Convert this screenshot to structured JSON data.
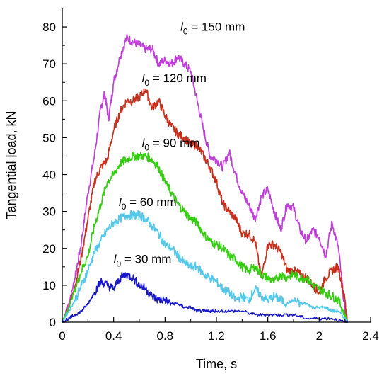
{
  "chart_data": {
    "type": "line",
    "xlabel": "Time, s",
    "ylabel": "Tangential load, kN",
    "xlim": [
      0,
      2.4
    ],
    "ylim": [
      0,
      85
    ],
    "x_ticks": [
      "0",
      "0.4",
      "0.8",
      "1.2",
      "1.6",
      "2",
      "2.4"
    ],
    "y_ticks": [
      "0",
      "10",
      "20",
      "30",
      "40",
      "50",
      "60",
      "70",
      "80"
    ],
    "grid": false,
    "series": [
      {
        "name": "l0 = 150 mm",
        "label_main": "l",
        "label_sub": "0",
        "label_rest": " = 150 mm",
        "color": "#c03ed8",
        "x": [
          0,
          0.05,
          0.1,
          0.15,
          0.2,
          0.25,
          0.3,
          0.33,
          0.36,
          0.4,
          0.45,
          0.5,
          0.55,
          0.6,
          0.65,
          0.7,
          0.75,
          0.8,
          0.85,
          0.9,
          0.95,
          1.0,
          1.05,
          1.1,
          1.15,
          1.2,
          1.25,
          1.3,
          1.35,
          1.4,
          1.45,
          1.5,
          1.55,
          1.6,
          1.65,
          1.7,
          1.75,
          1.8,
          1.85,
          1.9,
          1.95,
          2.0,
          2.05,
          2.1,
          2.15,
          2.2,
          2.22
        ],
        "values": [
          0,
          5,
          12,
          22,
          35,
          45,
          58,
          62,
          55,
          65,
          72,
          77,
          76,
          75,
          74,
          74,
          70,
          71,
          70,
          72,
          70,
          68,
          60,
          52,
          45,
          44,
          42,
          46,
          40,
          35,
          32,
          28,
          34,
          36,
          30,
          25,
          32,
          31,
          25,
          22,
          25,
          23,
          18,
          27,
          20,
          3,
          0
        ]
      },
      {
        "name": "l0 = 120 mm",
        "label_main": "l",
        "label_sub": "0",
        "label_rest": " = 120 mm",
        "color": "#c8301e",
        "x": [
          0,
          0.05,
          0.1,
          0.15,
          0.2,
          0.25,
          0.3,
          0.35,
          0.4,
          0.45,
          0.5,
          0.55,
          0.6,
          0.65,
          0.7,
          0.75,
          0.8,
          0.85,
          0.9,
          0.95,
          1.0,
          1.05,
          1.1,
          1.15,
          1.2,
          1.25,
          1.3,
          1.35,
          1.4,
          1.45,
          1.5,
          1.55,
          1.6,
          1.65,
          1.7,
          1.75,
          1.8,
          1.85,
          1.9,
          1.95,
          2.0,
          2.05,
          2.1,
          2.15,
          2.2,
          2.22
        ],
        "values": [
          0,
          4,
          10,
          18,
          28,
          38,
          42,
          44,
          52,
          57,
          60,
          60,
          61,
          63,
          58,
          60,
          56,
          53,
          51,
          50,
          48,
          48,
          45,
          42,
          38,
          32,
          30,
          28,
          24,
          24,
          22,
          12,
          21,
          21,
          19,
          14,
          14,
          13,
          12,
          10,
          8,
          12,
          14,
          15,
          6,
          0
        ]
      },
      {
        "name": "l0 = 90 mm",
        "label_main": "l",
        "label_sub": "0",
        "label_rest": " = 90 mm",
        "color": "#35cc12",
        "x": [
          0,
          0.05,
          0.1,
          0.15,
          0.2,
          0.25,
          0.3,
          0.35,
          0.4,
          0.45,
          0.5,
          0.55,
          0.6,
          0.65,
          0.7,
          0.75,
          0.8,
          0.85,
          0.9,
          0.95,
          1.0,
          1.05,
          1.1,
          1.15,
          1.2,
          1.25,
          1.3,
          1.35,
          1.4,
          1.45,
          1.5,
          1.55,
          1.6,
          1.65,
          1.7,
          1.75,
          1.8,
          1.85,
          1.9,
          1.95,
          2.0,
          2.05,
          2.1,
          2.15,
          2.2,
          2.22
        ],
        "values": [
          0,
          4,
          9,
          14,
          18,
          26,
          32,
          38,
          40,
          43,
          44,
          45,
          45,
          45,
          44,
          42,
          38,
          35,
          32,
          30,
          28,
          27,
          24,
          22,
          21,
          20,
          18,
          17,
          15,
          14,
          15,
          13,
          12,
          11,
          13,
          12,
          13,
          12,
          12,
          10,
          9,
          8,
          7,
          6,
          2,
          0
        ]
      },
      {
        "name": "l0 = 60 mm",
        "label_main": "l",
        "label_sub": "0",
        "label_rest": " = 60 mm",
        "color": "#55c8ea",
        "x": [
          0,
          0.05,
          0.1,
          0.15,
          0.2,
          0.25,
          0.3,
          0.35,
          0.4,
          0.45,
          0.5,
          0.55,
          0.6,
          0.65,
          0.7,
          0.75,
          0.8,
          0.85,
          0.9,
          0.95,
          1.0,
          1.05,
          1.1,
          1.15,
          1.2,
          1.25,
          1.3,
          1.35,
          1.4,
          1.45,
          1.5,
          1.55,
          1.6,
          1.65,
          1.7,
          1.75,
          1.8,
          1.85,
          1.9,
          1.95,
          2.0,
          2.05,
          2.1,
          2.15,
          2.2,
          2.22
        ],
        "values": [
          0,
          3,
          6,
          10,
          14,
          19,
          22,
          25,
          27,
          28,
          29,
          29,
          29,
          28,
          26,
          24,
          21,
          20,
          18,
          16,
          15,
          15,
          13,
          12,
          11,
          9,
          8,
          6,
          7,
          6,
          9,
          7,
          6,
          7,
          6,
          5,
          6,
          5,
          5,
          4,
          4,
          4,
          3,
          3,
          1,
          0
        ]
      },
      {
        "name": "l0 = 30 mm",
        "label_main": "l",
        "label_sub": "0",
        "label_rest": " = 30 mm",
        "color": "#1818c8",
        "x": [
          0,
          0.05,
          0.1,
          0.15,
          0.2,
          0.25,
          0.3,
          0.35,
          0.4,
          0.45,
          0.5,
          0.55,
          0.6,
          0.65,
          0.7,
          0.75,
          0.8,
          0.85,
          0.9,
          0.95,
          1.0,
          1.05,
          1.1,
          1.15,
          1.2,
          1.3,
          1.4,
          1.5,
          1.6,
          1.7,
          1.8,
          1.9,
          2.0,
          2.1,
          2.2,
          2.22
        ],
        "values": [
          0,
          1,
          2,
          3,
          5,
          8,
          11,
          10,
          9,
          12,
          13,
          12,
          10,
          9,
          7,
          6,
          6,
          5,
          5,
          4,
          4,
          3,
          3,
          3,
          3,
          3,
          3,
          2,
          2,
          2,
          2,
          1,
          1,
          1,
          0,
          0
        ]
      }
    ],
    "labels": [
      {
        "series": 0,
        "x": 0.92,
        "y": 79
      },
      {
        "series": 1,
        "x": 0.62,
        "y": 65
      },
      {
        "series": 2,
        "x": 0.62,
        "y": 47.5
      },
      {
        "series": 3,
        "x": 0.44,
        "y": 31.5
      },
      {
        "series": 4,
        "x": 0.4,
        "y": 16
      }
    ]
  }
}
